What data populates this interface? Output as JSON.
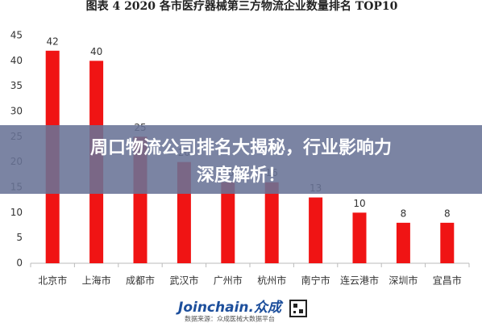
{
  "chart_data": {
    "type": "bar",
    "title": "图表 4   2020 各市医疗器械第三方物流企业数量排名 TOP10",
    "categories": [
      "北京市",
      "上海市",
      "成都市",
      "武汉市",
      "广州市",
      "杭州市",
      "南宁市",
      "连云港市",
      "深圳市",
      "宜昌市"
    ],
    "values": [
      42,
      40,
      25,
      20,
      16,
      16,
      13,
      10,
      8,
      8
    ],
    "color": "#f01414",
    "ylim": [
      0,
      45
    ],
    "yticks": [
      0,
      5,
      10,
      15,
      20,
      25,
      30,
      35,
      40,
      45
    ],
    "grid": false
  },
  "banner": {
    "lines": [
      "周口物流公司排名大揭秘，行业影响力",
      "深度解析！"
    ]
  },
  "footer": {
    "logo": "Joinchain.众成",
    "source": "数据来源：众成医械大数据平台"
  }
}
